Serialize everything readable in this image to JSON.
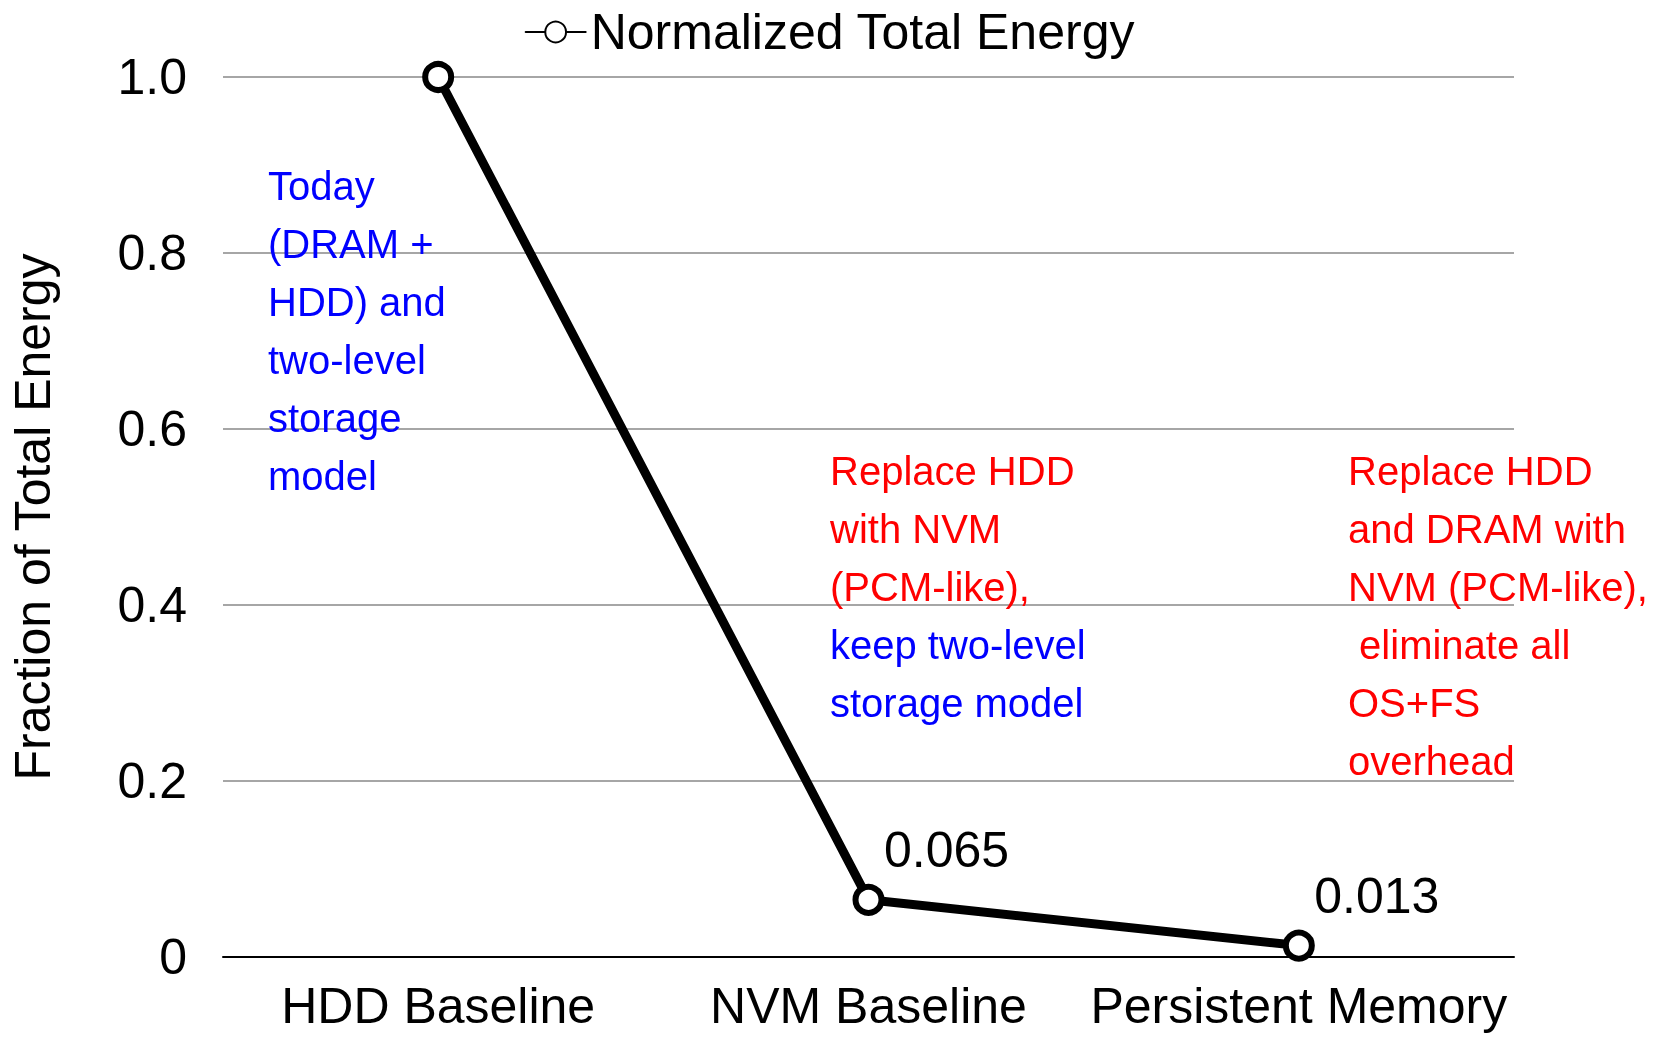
{
  "chart_data": {
    "type": "line",
    "ylabel": "Fraction of Total Energy",
    "categories": [
      "HDD Baseline",
      "NVM Baseline",
      "Persistent Memory"
    ],
    "series": [
      {
        "name": "Normalized Total Energy",
        "color": "#000000",
        "values": [
          1.0,
          0.065,
          0.013
        ],
        "value_labels": [
          null,
          "0.065",
          "0.013"
        ]
      }
    ],
    "ylim": [
      0,
      1.0
    ],
    "yticks": [
      {
        "value": 0,
        "label": "0"
      },
      0.2,
      0.4,
      0.6,
      0.8,
      {
        "value": 1.0,
        "label": "1.0"
      }
    ],
    "grid": "y",
    "legend": "top",
    "marker": "circle",
    "line_style": "solid",
    "annotations": [
      "Today (DRAM + HDD) and two-level storage model",
      "Replace HDD with NVM (PCM-like),",
      "keep two-level storage model",
      "Replace HDD and DRAM with NVM (PCM-like), eliminate all OS+FS overhead"
    ]
  }
}
